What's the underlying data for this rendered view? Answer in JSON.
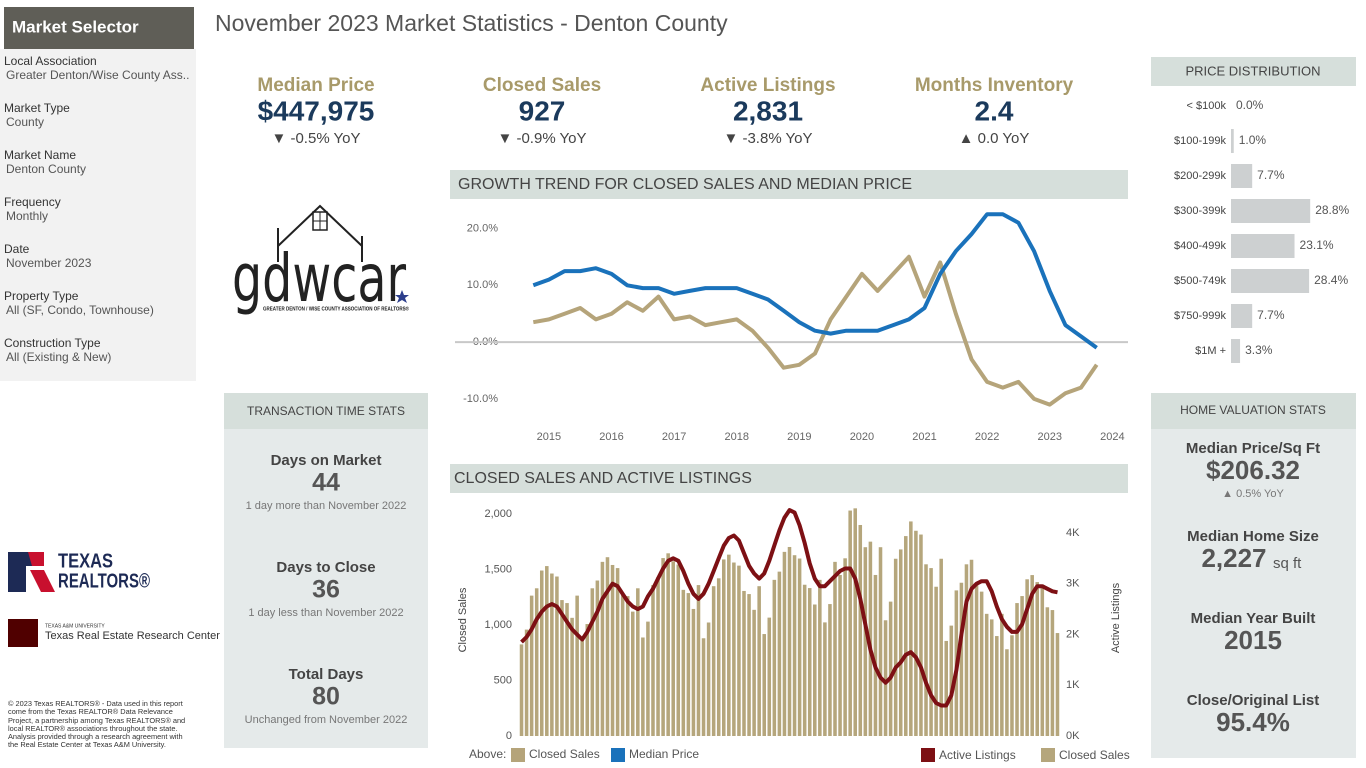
{
  "header": {
    "title": "November 2023 Market Statistics - Denton County"
  },
  "sidebar": {
    "title": "Market Selector",
    "fields": [
      {
        "label": "Local Association",
        "value": "Greater Denton/Wise County Ass.."
      },
      {
        "label": "Market Type",
        "value": "County"
      },
      {
        "label": "Market Name",
        "value": "Denton County"
      },
      {
        "label": "Frequency",
        "value": "Monthly"
      },
      {
        "label": "Date",
        "value": "November 2023"
      },
      {
        "label": "Property Type",
        "value": "All (SF, Condo, Townhouse)"
      },
      {
        "label": "Construction Type",
        "value": "All (Existing & New)"
      }
    ]
  },
  "kpis": [
    {
      "label": "Median Price",
      "value": "$447,975",
      "change": "▼ -0.5% YoY"
    },
    {
      "label": "Closed Sales",
      "value": "927",
      "change": "▼ -0.9% YoY"
    },
    {
      "label": "Active Listings",
      "value": "2,831",
      "change": "▼ -3.8% YoY"
    },
    {
      "label": "Months Inventory",
      "value": "2.4",
      "change": "▲ 0.0 YoY"
    }
  ],
  "logos": {
    "gdwcar": "gdwcar",
    "gdwcar_tagline": "GREATER DENTON / WISE COUNTY ASSOCIATION OF REALTORS®",
    "texas": "TEXAS",
    "realtors": "REALTORS®",
    "university": "TEXAS A&M UNIVERSITY",
    "center": "Texas Real Estate Research Center"
  },
  "transaction_stats": {
    "title": "TRANSACTION TIME STATS",
    "items": [
      {
        "label": "Days on Market",
        "value": "44",
        "note": "1 day more than November 2022"
      },
      {
        "label": "Days to Close",
        "value": "36",
        "note": "1 day less than November 2022"
      },
      {
        "label": "Total Days",
        "value": "80",
        "note": "Unchanged from November 2022"
      }
    ]
  },
  "home_valuation": {
    "title": "HOME VALUATION STATS",
    "items": [
      {
        "label": "Median Price/Sq Ft",
        "value": "$206.32",
        "detail": "▲ 0.5% YoY"
      },
      {
        "label": "Median Home Size",
        "value": "2,227",
        "unit": "sq ft"
      },
      {
        "label": "Median Year Built",
        "value": "2015"
      },
      {
        "label": "Close/Original List",
        "value": "95.4%"
      }
    ]
  },
  "footer": "© 2023 Texas REALTORS® - Data used in this report come from the Texas REALTOR® Data Relevance Project, a partnership among Texas REALTORS® and local REALTOR® associations throughout the state. Analysis provided through a research agreement with the Real Estate Center at Texas A&M University.",
  "chart_data": [
    {
      "type": "line",
      "title": "GROWTH TREND FOR CLOSED SALES AND MEDIAN PRICE",
      "legend_title": "Above:",
      "x": [
        2014.75,
        2015,
        2015.25,
        2015.5,
        2015.75,
        2016,
        2016.25,
        2016.5,
        2016.75,
        2017,
        2017.25,
        2017.5,
        2017.75,
        2018,
        2018.25,
        2018.5,
        2018.75,
        2019,
        2019.25,
        2019.5,
        2019.75,
        2020,
        2020.25,
        2020.5,
        2020.75,
        2021,
        2021.25,
        2021.5,
        2021.75,
        2022,
        2022.25,
        2022.5,
        2022.75,
        2023,
        2023.25,
        2023.5,
        2023.75
      ],
      "series": [
        {
          "name": "Closed Sales",
          "color": "#b5a47a",
          "values": [
            3.5,
            4,
            5,
            6,
            4,
            5,
            7,
            5.5,
            8,
            4,
            4.5,
            3,
            3.5,
            4,
            2,
            -1,
            -4.5,
            -4,
            -2,
            4,
            8,
            12,
            9,
            12,
            15,
            8,
            14,
            5,
            -3,
            -7,
            -8,
            -7,
            -10,
            -11,
            -9,
            -8,
            -4
          ]
        },
        {
          "name": "Median Price",
          "color": "#1a72bb",
          "values": [
            10,
            11,
            12.5,
            12.5,
            13,
            12,
            10,
            9.5,
            9.5,
            8.5,
            9,
            9.5,
            9.5,
            9.5,
            8.5,
            7.5,
            5.5,
            3.5,
            2,
            1.5,
            2,
            2,
            2,
            3,
            4,
            6,
            12,
            16,
            19,
            22.5,
            22.5,
            21,
            16,
            9,
            3,
            1,
            -1
          ]
        }
      ],
      "xlim": [
        2013.5,
        2024.25
      ],
      "xticks": [
        2015,
        2016,
        2017,
        2018,
        2019,
        2020,
        2021,
        2022,
        2023,
        2024
      ],
      "ylim": [
        -13,
        25
      ],
      "yticks": [
        {
          "value": -10,
          "label": "-10.0%"
        },
        {
          "value": 0,
          "label": "0.0%"
        },
        {
          "value": 10,
          "label": "10.0%"
        },
        {
          "value": 20,
          "label": "20.0%"
        }
      ],
      "zero_line": true
    },
    {
      "type": "bar",
      "orientation": "horizontal",
      "title": "PRICE DISTRIBUTION",
      "color": "#cdd0d1",
      "categories": [
        "< $100k",
        "$100-199k",
        "$200-299k",
        "$300-399k",
        "$400-499k",
        "$500-749k",
        "$750-999k",
        "$1M +"
      ],
      "values": [
        0,
        1,
        7.7,
        28.8,
        23.1,
        28.4,
        7.7,
        3.3
      ],
      "value_labels": [
        "0.0%",
        "1.0%",
        "7.7%",
        "28.8%",
        "23.1%",
        "28.4%",
        "7.7%",
        "3.3%"
      ]
    },
    {
      "type": "combo",
      "title": "CLOSED SALES AND ACTIVE LISTINGS",
      "ylabel": "Closed Sales",
      "y2label": "Active Listings",
      "series": [
        {
          "name": "Active Listings",
          "color": "#7d1014",
          "mark": "line",
          "axis": "y2",
          "values": [
            1850,
            1950,
            2100,
            2300,
            2450,
            2550,
            2600,
            2550,
            2400,
            2250,
            2100,
            2000,
            1900,
            2050,
            2250,
            2450,
            2700,
            2850,
            3000,
            2950,
            2800,
            2650,
            2550,
            2500,
            2550,
            2750,
            2900,
            3100,
            3300,
            3450,
            3500,
            3450,
            3250,
            3000,
            2800,
            2700,
            2800,
            3000,
            3250,
            3500,
            3750,
            3900,
            3950,
            3850,
            3600,
            3350,
            3200,
            3100,
            3200,
            3450,
            3750,
            4050,
            4300,
            4450,
            4400,
            4150,
            3800,
            3400,
            3100,
            2950,
            2950,
            3050,
            3150,
            3250,
            3300,
            3300,
            3100,
            2700,
            2200,
            1700,
            1350,
            1150,
            1050,
            1150,
            1350,
            1450,
            1600,
            1650,
            1550,
            1350,
            1050,
            800,
            650,
            600,
            600,
            800,
            1300,
            2000,
            2650,
            2900,
            3000,
            3050,
            3050,
            2850,
            2550,
            2300,
            2150,
            2050,
            2050,
            2200,
            2500,
            2800,
            2950,
            2950,
            2900,
            2850,
            2831
          ]
        },
        {
          "name": "Closed Sales",
          "color": "#b5a67c",
          "mark": "bar",
          "values": [
            825,
            958,
            1264,
            1330,
            1490,
            1530,
            1463,
            1436,
            1224,
            1197,
            1064,
            1264,
            868,
            1008,
            1330,
            1400,
            1568,
            1610,
            1540,
            1512,
            1288,
            1260,
            1120,
            1330,
            887,
            1030,
            1359,
            1430,
            1602,
            1645,
            1573,
            1544,
            1316,
            1287,
            1144,
            1359,
            880,
            1022,
            1349,
            1420,
            1590,
            1633,
            1562,
            1534,
            1306,
            1278,
            1136,
            1349,
            918,
            1066,
            1406,
            1480,
            1658,
            1702,
            1628,
            1598,
            1362,
            1332,
            1184,
            1406,
            1023,
            1188,
            1568,
            1450,
            1600,
            2030,
            2050,
            1900,
            1700,
            1750,
            1450,
            1700,
            1042,
            1210,
            1596,
            1680,
            1800,
            1932,
            1848,
            1814,
            1546,
            1512,
            1344,
            1596,
            856,
            994,
            1311,
            1380,
            1546,
            1587,
            1380,
            1300,
            1100,
            1050,
            900,
            1100,
            781,
            907,
            1197,
            1260,
            1411,
            1449,
            1386,
            1361,
            1159,
            1134,
            927
          ]
        }
      ],
      "ylim": [
        0,
        2080
      ],
      "yticks": [
        0,
        500,
        {
          "value": 1000,
          "label": "1,000"
        },
        {
          "value": 1500,
          "label": "1,500"
        },
        {
          "value": 2000,
          "label": "2,000"
        }
      ],
      "y2lim": [
        0,
        4550
      ],
      "y2ticks": [
        {
          "value": 0,
          "label": "0K"
        },
        {
          "value": 1000,
          "label": "1K"
        },
        {
          "value": 2000,
          "label": "2K"
        },
        {
          "value": 3000,
          "label": "3K"
        },
        {
          "value": 4000,
          "label": "4K"
        }
      ]
    }
  ]
}
